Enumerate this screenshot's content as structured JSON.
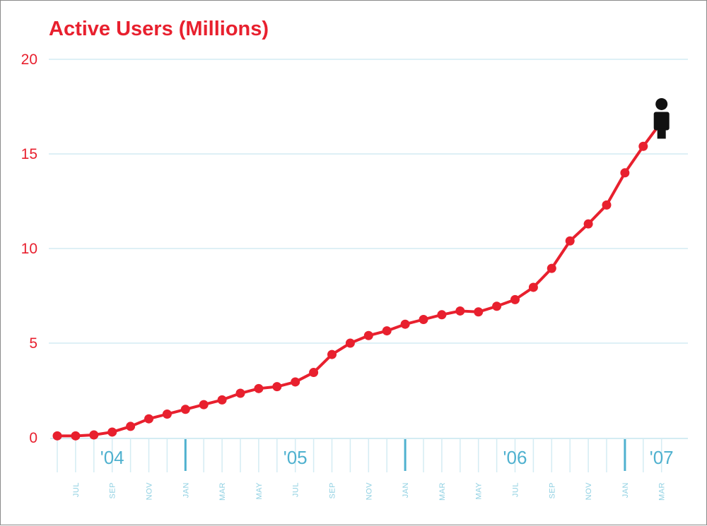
{
  "chart_data": {
    "type": "line",
    "title": "Active Users (Millions)",
    "xlabel": "",
    "ylabel": "",
    "ylim": [
      0,
      20
    ],
    "yticks": [
      "0",
      "5",
      "10",
      "15",
      "20"
    ],
    "month_labels": [
      "JUL",
      "SEP",
      "NOV",
      "JAN",
      "MAR",
      "MAY",
      "JUL",
      "SEP",
      "NOV",
      "JAN",
      "MAR",
      "MAY",
      "JUL",
      "SEP",
      "NOV",
      "JAN",
      "MAR"
    ],
    "year_labels": [
      "'04",
      "'05",
      "'06",
      "'07"
    ],
    "grid": true,
    "colors": {
      "line": "#e8202e",
      "axis": "#4fb1cf",
      "grid": "#d4ecf3",
      "marker": "#111111"
    },
    "end_marker": "person-icon",
    "series": [
      {
        "x": [
          "2004-06",
          "2004-07",
          "2004-08",
          "2004-09",
          "2004-10",
          "2004-11",
          "2004-12",
          "2005-01",
          "2005-02",
          "2005-03",
          "2005-04",
          "2005-05",
          "2005-06",
          "2005-07",
          "2005-08",
          "2005-09",
          "2005-10",
          "2005-11",
          "2005-12",
          "2006-01",
          "2006-02",
          "2006-03",
          "2006-04",
          "2006-05",
          "2006-06",
          "2006-07",
          "2006-08",
          "2006-09",
          "2006-10",
          "2006-11",
          "2006-12",
          "2007-01",
          "2007-02",
          "2007-03"
        ],
        "values": [
          0.1,
          0.1,
          0.15,
          0.3,
          0.6,
          1.0,
          1.25,
          1.5,
          1.75,
          2.0,
          2.35,
          2.6,
          2.7,
          2.95,
          3.45,
          4.4,
          5.0,
          5.4,
          5.65,
          6.0,
          6.25,
          6.5,
          6.7,
          6.65,
          6.95,
          7.3,
          7.95,
          8.95,
          10.4,
          11.3,
          12.3,
          14.0,
          15.4,
          16.7
        ]
      }
    ]
  }
}
